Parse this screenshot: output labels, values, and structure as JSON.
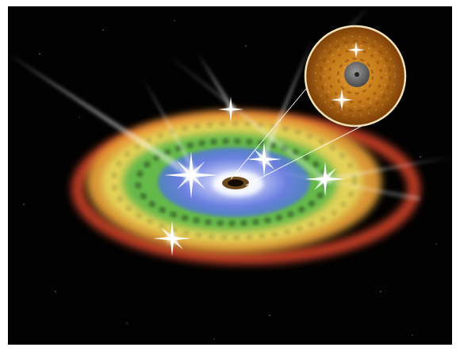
{
  "scene": {
    "subject": "accretion-disk-with-magnified-inset",
    "colors": {
      "background": "#020202",
      "frame": "#ffffff",
      "outer_ring": "#d9442a",
      "orange_band": "#f0a63a",
      "yellow_band": "#e4d55a",
      "green_band": "#5fb84a",
      "blue_core": "#6a7fe0",
      "inset_fill": "#b86a12",
      "inset_edge": "#f3e2b8",
      "center_body": "#6a6a6a"
    },
    "icons": [
      "star-flare-icon",
      "light-ray-icon",
      "black-hole-icon"
    ]
  }
}
